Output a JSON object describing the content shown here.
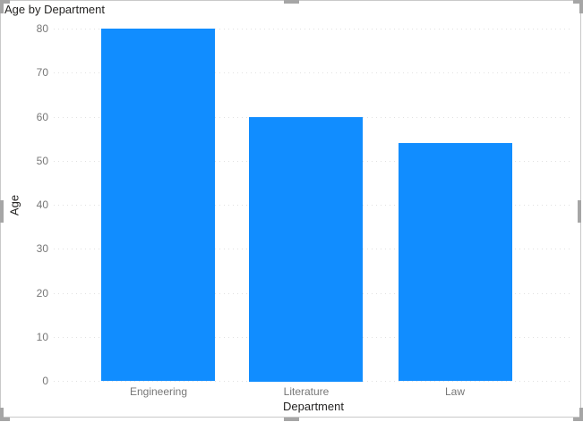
{
  "visual": {
    "title": "Age by Department"
  },
  "chart_data": {
    "type": "bar",
    "title": "Age by Department",
    "categories": [
      "Engineering",
      "Literature",
      "Law"
    ],
    "values": [
      80,
      60,
      54
    ],
    "xlabel": "Department",
    "ylabel": "Age",
    "ylim": [
      0,
      80
    ],
    "yticks": [
      0,
      10,
      20,
      30,
      40,
      50,
      60,
      70,
      80
    ],
    "grid": "horizontal-dotted",
    "legend_position": "none",
    "bar_color": "#118DFF"
  },
  "colors": {
    "bar": "#118DFF",
    "title_text": "#252423",
    "axis_title_text": "#252423",
    "tick_label_text": "#777777",
    "gridline": "#E1E1E1",
    "frame_border": "#C9C9C9",
    "resize_handle": "#A6A6A6"
  }
}
